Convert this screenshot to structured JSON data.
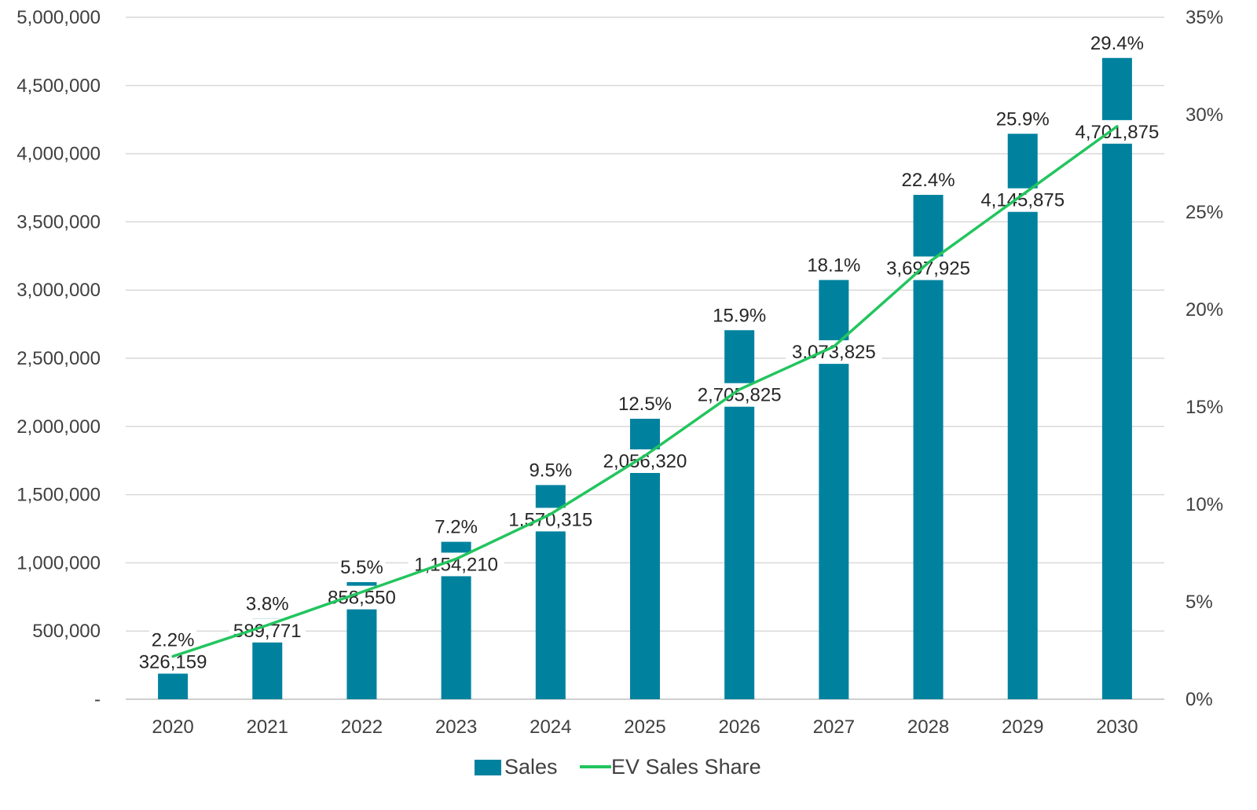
{
  "chart_data": {
    "type": "bar",
    "categories": [
      "2020",
      "2021",
      "2022",
      "2023",
      "2024",
      "2025",
      "2026",
      "2027",
      "2028",
      "2029",
      "2030"
    ],
    "series": [
      {
        "name": "Sales",
        "type": "bar",
        "axis": "left",
        "color": "#00829F",
        "values": [
          326159,
          589771,
          858550,
          1154210,
          1570315,
          2056320,
          2705825,
          3073825,
          3697925,
          4145875,
          4701875
        ],
        "labels": [
          "326,159",
          "589,771",
          "858,550",
          "1,154,210",
          "1,570,315",
          "2,056,320",
          "2,705,825",
          "3,073,825",
          "3,697,925",
          "4,145,875",
          "4,701,875"
        ]
      },
      {
        "name": "EV Sales Share",
        "type": "line",
        "axis": "right",
        "color": "#22C55E",
        "values": [
          2.2,
          3.8,
          5.5,
          7.2,
          9.5,
          12.5,
          15.9,
          18.1,
          22.4,
          25.9,
          29.4
        ],
        "labels": [
          "2.2%",
          "3.8%",
          "5.5%",
          "7.2%",
          "9.5%",
          "12.5%",
          "15.9%",
          "18.1%",
          "22.4%",
          "25.9%",
          "29.4%"
        ]
      }
    ],
    "y_left": {
      "min": 0,
      "max": 5000000,
      "ticks": [
        0,
        500000,
        1000000,
        1500000,
        2000000,
        2500000,
        3000000,
        3500000,
        4000000,
        4500000,
        5000000
      ],
      "tick_labels": [
        "-",
        "500,000",
        "1,000,000",
        "1,500,000",
        "2,000,000",
        "2,500,000",
        "3,000,000",
        "3,500,000",
        "4,000,000",
        "4,500,000",
        "5,000,000"
      ]
    },
    "y_right": {
      "min": 0,
      "max": 35,
      "ticks": [
        0,
        5,
        10,
        15,
        20,
        25,
        30,
        35
      ],
      "tick_labels": [
        "0%",
        "5%",
        "10%",
        "15%",
        "20%",
        "25%",
        "30%",
        "35%"
      ]
    },
    "grid": true,
    "gridline_color": "#D9D9D9",
    "legend": {
      "position": "bottom",
      "items": [
        {
          "label": "Sales",
          "symbol": "bar",
          "color": "#00829F"
        },
        {
          "label": "EV Sales Share",
          "symbol": "line",
          "color": "#22C55E"
        }
      ]
    },
    "title": "",
    "xlabel": "",
    "ylabel": ""
  }
}
